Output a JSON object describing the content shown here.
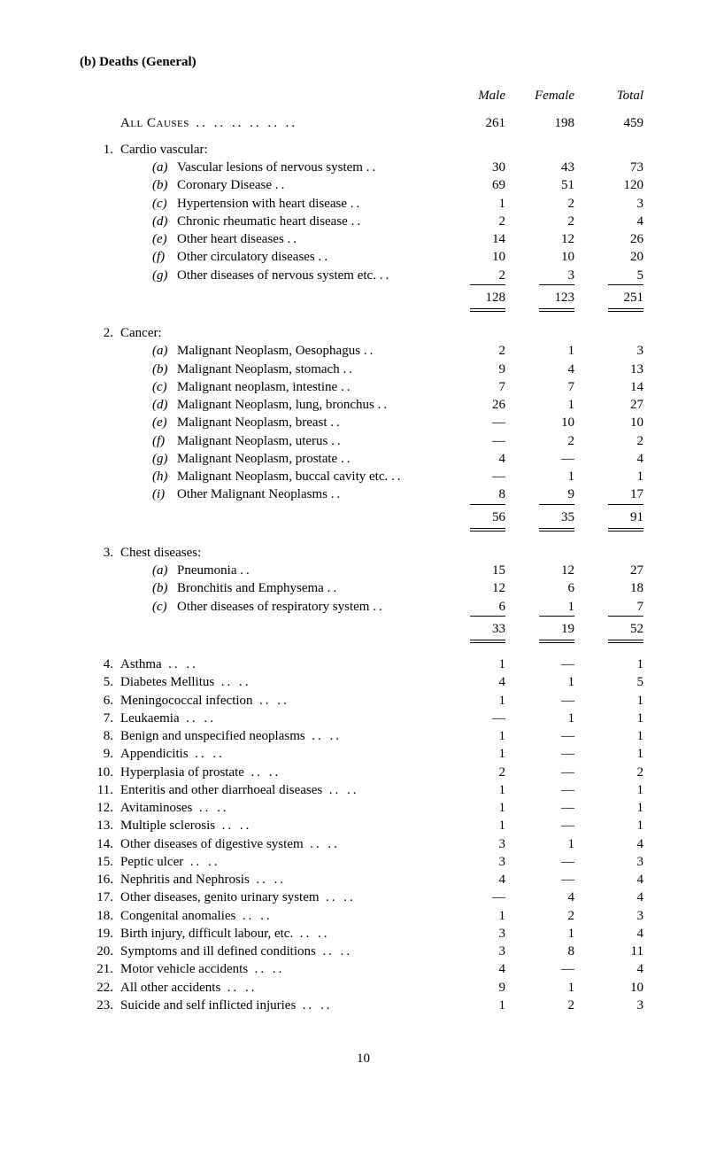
{
  "section_label": "(b)  Deaths (General)",
  "headers": {
    "male": "Male",
    "female": "Female",
    "total": "Total"
  },
  "all_causes": {
    "label": "All Causes",
    "male": "261",
    "female": "198",
    "total": "459"
  },
  "groups": [
    {
      "num": "1.",
      "title": "Cardio vascular:",
      "rows": [
        {
          "l": "(a)",
          "t": "Vascular lesions of nervous system",
          "m": "30",
          "f": "43",
          "tot": "73"
        },
        {
          "l": "(b)",
          "t": "Coronary Disease",
          "m": "69",
          "f": "51",
          "tot": "120"
        },
        {
          "l": "(c)",
          "t": "Hypertension with heart disease",
          "m": "1",
          "f": "2",
          "tot": "3"
        },
        {
          "l": "(d)",
          "t": "Chronic rheumatic heart disease",
          "m": "2",
          "f": "2",
          "tot": "4"
        },
        {
          "l": "(e)",
          "t": "Other heart diseases",
          "m": "14",
          "f": "12",
          "tot": "26"
        },
        {
          "l": "(f)",
          "t": "Other circulatory diseases",
          "m": "10",
          "f": "10",
          "tot": "20"
        },
        {
          "l": "(g)",
          "t": "Other diseases of nervous system etc.",
          "m": "2",
          "f": "3",
          "tot": "5"
        }
      ],
      "subtotal": {
        "m": "128",
        "f": "123",
        "tot": "251"
      }
    },
    {
      "num": "2.",
      "title": "Cancer:",
      "rows": [
        {
          "l": "(a)",
          "t": "Malignant Neoplasm, Oesophagus",
          "m": "2",
          "f": "1",
          "tot": "3"
        },
        {
          "l": "(b)",
          "t": "Malignant Neoplasm, stomach",
          "m": "9",
          "f": "4",
          "tot": "13"
        },
        {
          "l": "(c)",
          "t": "Malignant neoplasm, intestine",
          "m": "7",
          "f": "7",
          "tot": "14"
        },
        {
          "l": "(d)",
          "t": "Malignant Neoplasm, lung, bronchus",
          "m": "26",
          "f": "1",
          "tot": "27"
        },
        {
          "l": "(e)",
          "t": "Malignant Neoplasm, breast",
          "m": "—",
          "f": "10",
          "tot": "10"
        },
        {
          "l": "(f)",
          "t": "Malignant Neoplasm, uterus",
          "m": "—",
          "f": "2",
          "tot": "2"
        },
        {
          "l": "(g)",
          "t": "Malignant Neoplasm, prostate",
          "m": "4",
          "f": "—",
          "tot": "4"
        },
        {
          "l": "(h)",
          "t": "Malignant Neoplasm, buccal cavity etc.",
          "m": "—",
          "f": "1",
          "tot": "1"
        },
        {
          "l": "(i)",
          "t": "Other Malignant Neoplasms",
          "m": "8",
          "f": "9",
          "tot": "17"
        }
      ],
      "subtotal": {
        "m": "56",
        "f": "35",
        "tot": "91"
      }
    },
    {
      "num": "3.",
      "title": "Chest diseases:",
      "rows": [
        {
          "l": "(a)",
          "t": "Pneumonia",
          "m": "15",
          "f": "12",
          "tot": "27"
        },
        {
          "l": "(b)",
          "t": "Bronchitis and Emphysema",
          "m": "12",
          "f": "6",
          "tot": "18"
        },
        {
          "l": "(c)",
          "t": "Other diseases of respiratory system",
          "m": "6",
          "f": "1",
          "tot": "7"
        }
      ],
      "subtotal": {
        "m": "33",
        "f": "19",
        "tot": "52"
      }
    }
  ],
  "flat_rows": [
    {
      "n": "4.",
      "t": "Asthma",
      "m": "1",
      "f": "—",
      "tot": "1"
    },
    {
      "n": "5.",
      "t": "Diabetes Mellitus",
      "m": "4",
      "f": "1",
      "tot": "5"
    },
    {
      "n": "6.",
      "t": "Meningococcal infection",
      "m": "1",
      "f": "—",
      "tot": "1"
    },
    {
      "n": "7.",
      "t": "Leukaemia",
      "m": "—",
      "f": "1",
      "tot": "1"
    },
    {
      "n": "8.",
      "t": "Benign and unspecified neoplasms",
      "m": "1",
      "f": "—",
      "tot": "1"
    },
    {
      "n": "9.",
      "t": "Appendicitis",
      "m": "1",
      "f": "—",
      "tot": "1"
    },
    {
      "n": "10.",
      "t": "Hyperplasia of prostate",
      "m": "2",
      "f": "—",
      "tot": "2"
    },
    {
      "n": "11.",
      "t": "Enteritis and other diarrhoeal diseases",
      "m": "1",
      "f": "—",
      "tot": "1"
    },
    {
      "n": "12.",
      "t": "Avitaminoses",
      "m": "1",
      "f": "—",
      "tot": "1"
    },
    {
      "n": "13.",
      "t": "Multiple sclerosis",
      "m": "1",
      "f": "—",
      "tot": "1"
    },
    {
      "n": "14.",
      "t": "Other diseases of digestive system",
      "m": "3",
      "f": "1",
      "tot": "4"
    },
    {
      "n": "15.",
      "t": "Peptic ulcer",
      "m": "3",
      "f": "—",
      "tot": "3"
    },
    {
      "n": "16.",
      "t": "Nephritis and Nephrosis",
      "m": "4",
      "f": "—",
      "tot": "4"
    },
    {
      "n": "17.",
      "t": "Other diseases, genito urinary system",
      "m": "—",
      "f": "4",
      "tot": "4"
    },
    {
      "n": "18.",
      "t": "Congenital anomalies",
      "m": "1",
      "f": "2",
      "tot": "3"
    },
    {
      "n": "19.",
      "t": "Birth injury, difficult labour, etc.",
      "m": "3",
      "f": "1",
      "tot": "4"
    },
    {
      "n": "20.",
      "t": "Symptoms and ill defined conditions",
      "m": "3",
      "f": "8",
      "tot": "11"
    },
    {
      "n": "21.",
      "t": "Motor vehicle accidents",
      "m": "4",
      "f": "—",
      "tot": "4"
    },
    {
      "n": "22.",
      "t": "All other accidents",
      "m": "9",
      "f": "1",
      "tot": "10"
    },
    {
      "n": "23.",
      "t": "Suicide and self inflicted injuries",
      "m": "1",
      "f": "2",
      "tot": "3"
    }
  ],
  "page_number": "10"
}
